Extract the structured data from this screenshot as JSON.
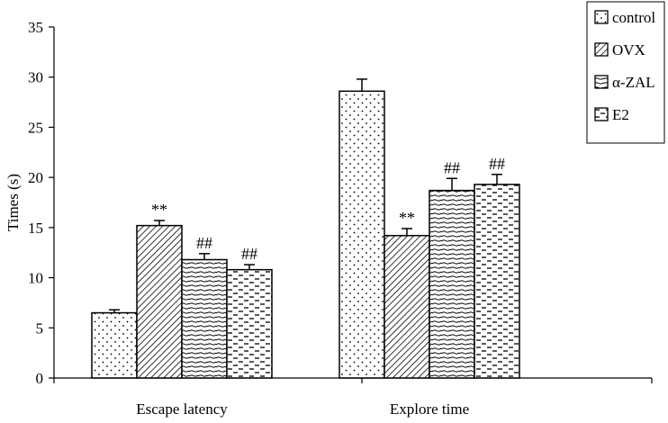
{
  "chart_data": {
    "type": "bar",
    "title": "",
    "xlabel": "",
    "ylabel": "Times (s)",
    "ylim": [
      0,
      35
    ],
    "yticks": [
      0,
      5,
      10,
      15,
      20,
      25,
      30,
      35
    ],
    "grid": false,
    "legend_position": "top-right",
    "categories": [
      "Escape latency",
      "Explore time"
    ],
    "series": [
      {
        "name": "control",
        "pattern": "dots",
        "values": [
          6.5,
          28.6
        ],
        "errors": [
          0.3,
          1.2
        ],
        "annotations": [
          "",
          ""
        ]
      },
      {
        "name": "OVX",
        "pattern": "diagonal",
        "values": [
          15.2,
          14.2
        ],
        "errors": [
          0.5,
          0.7
        ],
        "annotations": [
          "**",
          "**"
        ]
      },
      {
        "name": "α-ZAL",
        "pattern": "wavy",
        "values": [
          11.8,
          18.7
        ],
        "errors": [
          0.6,
          1.2
        ],
        "annotations": [
          "##",
          "##"
        ]
      },
      {
        "name": "E2",
        "pattern": "dashes",
        "values": [
          10.8,
          19.3
        ],
        "errors": [
          0.5,
          1.0
        ],
        "annotations": [
          "##",
          "##"
        ]
      }
    ]
  }
}
